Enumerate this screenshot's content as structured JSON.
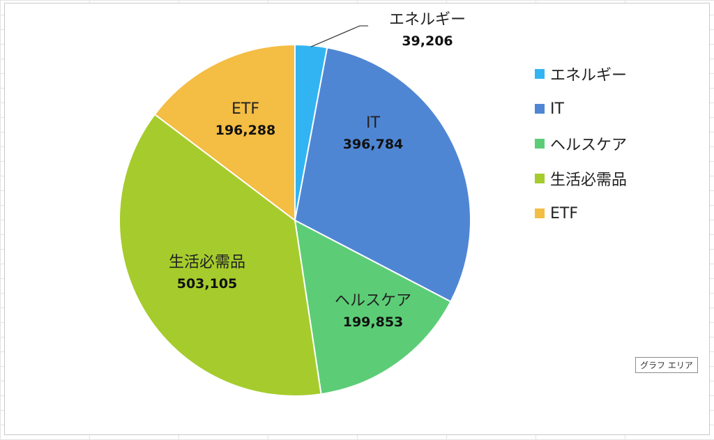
{
  "chart_data": {
    "type": "pie",
    "title": "",
    "categories": [
      "エネルギー",
      "IT",
      "ヘルスケア",
      "生活必需品",
      "ETF"
    ],
    "values": [
      39206,
      396784,
      199853,
      503105,
      196288
    ],
    "value_labels": [
      "39,206",
      "396,784",
      "199,853",
      "503,105",
      "196,288"
    ],
    "colors": [
      "#33b4f2",
      "#4f86d4",
      "#5ccd76",
      "#a5cc2c",
      "#f4bd43"
    ],
    "legend_position": "right",
    "start_angle_deg": 0,
    "direction": "clockwise"
  },
  "legend": {
    "items": [
      {
        "label": "エネルギー",
        "color": "#33b4f2"
      },
      {
        "label": "IT",
        "color": "#4f86d4"
      },
      {
        "label": "ヘルスケア",
        "color": "#5ccd76"
      },
      {
        "label": "生活必需品",
        "color": "#a5cc2c"
      },
      {
        "label": "ETF",
        "color": "#f4bd43"
      }
    ]
  },
  "tooltip": {
    "text": "グラフ エリア"
  }
}
